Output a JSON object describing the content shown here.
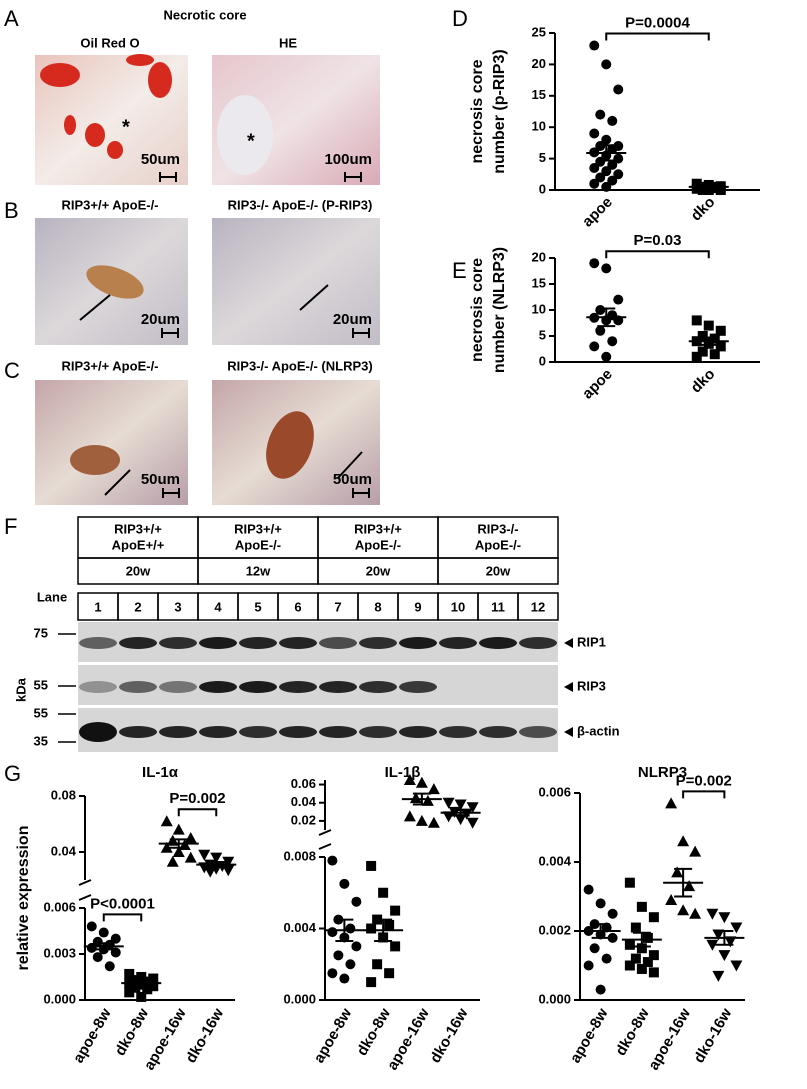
{
  "panel_A": {
    "label": "A",
    "title": "Necrotic core",
    "images": [
      {
        "caption": "Oil Red O",
        "mark": "*",
        "scale": "50um"
      },
      {
        "caption": "HE",
        "mark": "*",
        "scale": "100um"
      }
    ]
  },
  "panel_B": {
    "label": "B",
    "captions": [
      "RIP3+/+ ApoE-/-",
      "RIP3-/- ApoE-/- (P-RIP3)"
    ],
    "scales": [
      "20um",
      "20um"
    ]
  },
  "panel_C": {
    "label": "C",
    "captions": [
      "RIP3+/+ ApoE-/-",
      "RIP3-/- ApoE-/- (NLRP3)"
    ],
    "scales": [
      "50um",
      "50um"
    ]
  },
  "panel_F": {
    "label": "F",
    "lane_label": "Lane",
    "kda_label": "kDa",
    "ladder": [
      75,
      55,
      55,
      35
    ],
    "bands": [
      "RIP1",
      "RIP3",
      "β-actin"
    ],
    "groups": [
      {
        "lines": [
          "RIP3+/+",
          "ApoE+/+"
        ],
        "time": "20w",
        "lanes": [
          1,
          2,
          3
        ]
      },
      {
        "lines": [
          "RIP3+/+",
          "ApoE-/-"
        ],
        "time": "12w",
        "lanes": [
          4,
          5,
          6
        ]
      },
      {
        "lines": [
          "RIP3+/+",
          "ApoE-/-"
        ],
        "time": "20w",
        "lanes": [
          7,
          8,
          9
        ]
      },
      {
        "lines": [
          "RIP3-/-",
          "ApoE-/-"
        ],
        "time": "20w",
        "lanes": [
          10,
          11,
          12
        ]
      }
    ]
  },
  "panel_G": {
    "label": "G"
  },
  "chart_data": [
    {
      "type": "dotplot",
      "panel": "D",
      "ylabel": [
        "necrosis core",
        "number (p-RIP3)"
      ],
      "categories": [
        "apoe",
        "dko"
      ],
      "groups": [
        {
          "marker": "circle",
          "values": [
            23,
            20,
            16,
            12,
            11,
            9,
            8,
            7,
            7,
            6.5,
            6,
            5.5,
            5,
            4.5,
            4,
            3.5,
            3,
            2.5,
            2,
            1.5,
            1,
            0.5
          ],
          "mean": 5.9,
          "sem": 1.2
        },
        {
          "marker": "square",
          "values": [
            1,
            0.8,
            0.6,
            0.5,
            0.3,
            0.2,
            0,
            0,
            0,
            0.5
          ],
          "mean": 0.5,
          "sem": 0.2
        }
      ],
      "ylim": [
        0,
        25
      ],
      "yticks": [
        0,
        5,
        10,
        15,
        20,
        25
      ],
      "annotations": [
        {
          "text": "P=0.0004",
          "between": [
            "apoe",
            "dko"
          ]
        }
      ]
    },
    {
      "type": "dotplot",
      "panel": "E",
      "ylabel": [
        "necrosis core",
        "number (NLRP3)"
      ],
      "categories": [
        "apoe",
        "dko"
      ],
      "groups": [
        {
          "marker": "circle",
          "values": [
            19,
            18,
            12,
            10,
            9,
            8.5,
            8,
            8,
            6,
            4,
            3,
            1
          ],
          "mean": 8.6,
          "sem": 1.7
        },
        {
          "marker": "square",
          "values": [
            8,
            7,
            6,
            5,
            4.5,
            4,
            3.5,
            3,
            2,
            1.5,
            1
          ],
          "mean": 4,
          "sem": 0.7
        }
      ],
      "ylim": [
        0,
        20
      ],
      "yticks": [
        0,
        5,
        10,
        15,
        20
      ],
      "annotations": [
        {
          "text": "P=0.03",
          "between": [
            "apoe",
            "dko"
          ]
        }
      ]
    },
    {
      "type": "dotplot",
      "title": "IL-1α",
      "ylabel": [
        "relative expression"
      ],
      "categories": [
        "apoe-8w",
        "dko-8w",
        "apoe-16w",
        "dko-16w"
      ],
      "groups": [
        {
          "marker": "circle",
          "values": [
            0.0048,
            0.0044,
            0.004,
            0.0038,
            0.0036,
            0.0034,
            0.0033,
            0.0031,
            0.0028,
            0.0022
          ],
          "mean": 0.0035,
          "sem": 0.0002
        },
        {
          "marker": "square",
          "values": [
            0.0017,
            0.0015,
            0.0014,
            0.0013,
            0.0012,
            0.0011,
            0.001,
            0.0009,
            0.0008,
            0.0007,
            0.0005,
            0.0002
          ],
          "mean": 0.0011,
          "sem": 0.0001
        },
        {
          "marker": "triangle-up",
          "values": [
            0.062,
            0.056,
            0.05,
            0.048,
            0.045,
            0.043,
            0.04,
            0.036,
            0.033
          ],
          "mean": 0.046,
          "sem": 0.003
        },
        {
          "marker": "triangle-down",
          "values": [
            0.038,
            0.036,
            0.033,
            0.031,
            0.03,
            0.029,
            0.028,
            0.027,
            0.026
          ],
          "mean": 0.031,
          "sem": 0.0015
        }
      ],
      "ylim": [
        0,
        0.006
      ],
      "yticks": [
        {
          "value": 0,
          "label": "0.000"
        },
        0.003,
        0.006
      ],
      "ylim_upper": [
        0.02,
        0.08
      ],
      "yticks_upper": [
        0.04,
        0.08
      ],
      "annotations": [
        {
          "text": "P<0.0001",
          "between": [
            "apoe-8w",
            "dko-8w"
          ]
        },
        {
          "text": "P=0.002",
          "between": [
            "apoe-16w",
            "dko-16w"
          ]
        }
      ]
    },
    {
      "type": "dotplot",
      "title": "IL-1β",
      "categories": [
        "apoe-8w",
        "dko-8w",
        "apoe-16w",
        "dko-16w"
      ],
      "groups": [
        {
          "marker": "circle",
          "values": [
            0.0078,
            0.0065,
            0.0055,
            0.0045,
            0.004,
            0.0038,
            0.0035,
            0.003,
            0.0025,
            0.002,
            0.0015,
            0.0012
          ],
          "mean": 0.0039,
          "sem": 0.0006
        },
        {
          "marker": "square",
          "values": [
            0.0075,
            0.006,
            0.005,
            0.0045,
            0.0042,
            0.004,
            0.0035,
            0.003,
            0.002,
            0.0015,
            0.001
          ],
          "mean": 0.0039,
          "sem": 0.0006
        },
        {
          "marker": "triangle-up",
          "values": [
            0.065,
            0.062,
            0.055,
            0.045,
            0.042,
            0.025,
            0.02,
            0.018
          ],
          "mean": 0.044,
          "sem": 0.006
        },
        {
          "marker": "triangle-down",
          "values": [
            0.04,
            0.038,
            0.035,
            0.03,
            0.028,
            0.025,
            0.022,
            0.018
          ],
          "mean": 0.029,
          "sem": 0.003
        }
      ],
      "ylim": [
        0,
        0.008
      ],
      "yticks": [
        {
          "value": 0,
          "label": "0.000"
        },
        0.004,
        0.008
      ],
      "ylim_upper": [
        0.01,
        0.065
      ],
      "yticks_upper": [
        0.02,
        0.04,
        0.06
      ]
    },
    {
      "type": "dotplot",
      "title": "NLRP3",
      "categories": [
        "apoe-8w",
        "dko-8w",
        "apoe-16w",
        "dko-16w"
      ],
      "groups": [
        {
          "marker": "circle",
          "values": [
            0.0032,
            0.0028,
            0.0025,
            0.0022,
            0.0021,
            0.002,
            0.0019,
            0.0018,
            0.0015,
            0.0012,
            0.001,
            0.0003
          ],
          "mean": 0.002,
          "sem": 0.0002
        },
        {
          "marker": "square",
          "values": [
            0.0034,
            0.0027,
            0.0024,
            0.0021,
            0.0018,
            0.0016,
            0.0015,
            0.0013,
            0.0012,
            0.0011,
            0.001,
            0.0009,
            0.0008
          ],
          "mean": 0.00175,
          "sem": 0.0002
        },
        {
          "marker": "triangle-up",
          "values": [
            0.0057,
            0.0046,
            0.0043,
            0.0037,
            0.0033,
            0.0029,
            0.0026,
            0.0025
          ],
          "mean": 0.0034,
          "sem": 0.0004
        },
        {
          "marker": "triangle-down",
          "values": [
            0.0025,
            0.0024,
            0.0021,
            0.0019,
            0.0017,
            0.0016,
            0.0013,
            0.001,
            0.0007
          ],
          "mean": 0.0018,
          "sem": 0.0002
        }
      ],
      "ylim": [
        0,
        0.006
      ],
      "yticks": [
        {
          "value": 0,
          "label": "0.000"
        },
        0.002,
        0.004,
        0.006
      ],
      "annotations": [
        {
          "text": "P=0.002",
          "between": [
            "apoe-16w",
            "dko-16w"
          ]
        }
      ]
    }
  ]
}
